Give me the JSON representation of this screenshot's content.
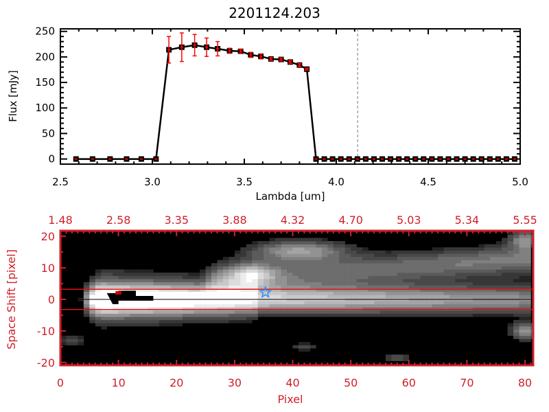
{
  "chart_data": [
    {
      "type": "line",
      "title": "2201124.203",
      "xlabel": "Lambda [um]",
      "ylabel": "Flux [mJy]",
      "xlim": [
        2.5,
        5.0
      ],
      "ylim": [
        -10,
        255
      ],
      "xticks": [
        "2.5",
        "3.0",
        "3.5",
        "4.0",
        "4.5",
        "5.0"
      ],
      "xtick_values": [
        2.5,
        3.0,
        3.5,
        4.0,
        4.5,
        5.0
      ],
      "yticks": [
        "0",
        "50",
        "100",
        "150",
        "200",
        "250"
      ],
      "ytick_values": [
        0,
        50,
        100,
        150,
        200,
        250
      ],
      "marker_line_lambda": 4.116,
      "series": [
        {
          "name": "flux",
          "color": "#000000",
          "error_color": "#ff0000",
          "x": [
            2.585,
            2.675,
            2.77,
            2.86,
            2.94,
            3.02,
            3.09,
            3.16,
            3.23,
            3.295,
            3.355,
            3.42,
            3.48,
            3.535,
            3.59,
            3.645,
            3.7,
            3.75,
            3.8,
            3.84,
            3.89,
            3.935,
            3.98,
            4.025,
            4.07,
            4.115,
            4.16,
            4.205,
            4.25,
            4.295,
            4.34,
            4.385,
            4.43,
            4.475,
            4.52,
            4.565,
            4.61,
            4.655,
            4.7,
            4.745,
            4.79,
            4.835,
            4.88,
            4.925,
            4.97
          ],
          "y": [
            0,
            0,
            0,
            0,
            0,
            0,
            214,
            219,
            223,
            219,
            216,
            212,
            211,
            204,
            201,
            196,
            195,
            190,
            184,
            176,
            0,
            0,
            0,
            0,
            0,
            0,
            0,
            0,
            0,
            0,
            0,
            0,
            0,
            0,
            0,
            0,
            0,
            0,
            0,
            0,
            0,
            0,
            0,
            0,
            0
          ],
          "err": [
            0,
            0,
            0,
            0,
            0,
            0,
            26,
            28,
            21,
            18,
            14,
            5,
            4,
            5,
            5,
            3,
            3,
            3,
            3,
            2,
            0,
            0,
            0,
            0,
            0,
            0,
            0,
            0,
            0,
            0,
            0,
            0,
            0,
            0,
            0,
            0,
            0,
            0,
            0,
            0,
            0,
            0,
            0,
            0,
            0
          ]
        }
      ]
    },
    {
      "type": "heatmap",
      "xlabel": "Pixel",
      "ylabel": "Space Shift [pixel]",
      "xlim": [
        0,
        81.4
      ],
      "ylim": [
        -21,
        21
      ],
      "xticks": [
        "0",
        "10",
        "20",
        "30",
        "40",
        "50",
        "60",
        "70",
        "80"
      ],
      "xtick_values": [
        0,
        10,
        20,
        30,
        40,
        50,
        60,
        70,
        80
      ],
      "top_xticks": [
        "1.48",
        "2.58",
        "3.35",
        "3.88",
        "4.32",
        "4.70",
        "5.03",
        "5.34",
        "5.55"
      ],
      "yticks": [
        "-20",
        "-10",
        "0",
        "10",
        "20"
      ],
      "ytick_values": [
        -20,
        -10,
        0,
        10,
        20
      ],
      "axis_color": "#d0202a",
      "aperture_lines": [
        3.2,
        -3.2
      ],
      "center_line": 0,
      "star": {
        "x": 35.3,
        "y": 2.2,
        "color": "#2a8cff"
      },
      "components": [
        {
          "x0": 3,
          "x1": 81,
          "y": 0,
          "sigma": 3.2,
          "amp": [
            1.0,
            0.55
          ]
        },
        {
          "x0": 4,
          "x1": 34,
          "y": 0.5,
          "sigma": 6.5,
          "amp": [
            0.45,
            0.15
          ]
        },
        {
          "x0": 24,
          "x1": 81,
          "y": [
            6,
            13
          ],
          "sigma": 3.5,
          "amp": [
            0.35,
            0.5
          ]
        },
        {
          "x": 41,
          "y": 15.5,
          "sx": 6,
          "sy": 2.5,
          "amp": 0.6
        },
        {
          "x": 33,
          "y": 8,
          "sx": 3,
          "sy": 2.5,
          "amp": 0.5
        },
        {
          "x": 80,
          "y": -10,
          "sx": 1.8,
          "sy": 2,
          "amp": 0.6
        },
        {
          "x": 80,
          "y": 19,
          "sx": 2,
          "sy": 2,
          "amp": 0.5
        },
        {
          "x": 2,
          "y": -13,
          "sx": 2,
          "sy": 1.2,
          "amp": 0.3
        },
        {
          "x": 42,
          "y": -15,
          "sx": 1.5,
          "sy": 1,
          "amp": 0.3
        },
        {
          "x": 58,
          "y": -18.5,
          "sx": 2,
          "sy": 1,
          "amp": 0.3
        }
      ]
    }
  ]
}
